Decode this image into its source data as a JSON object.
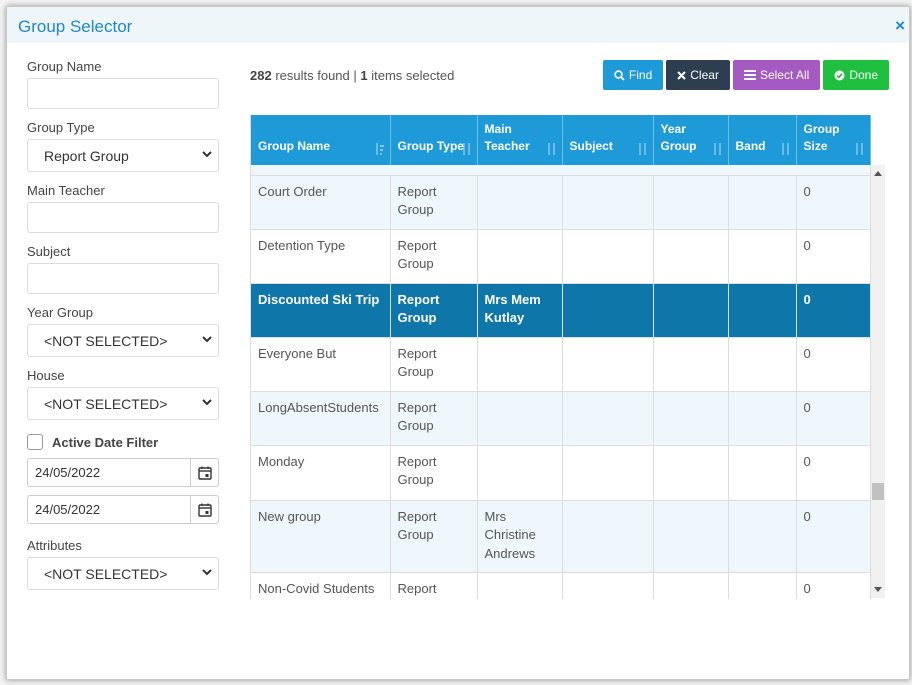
{
  "modal": {
    "title": "Group Selector",
    "close_label": "×"
  },
  "filters": {
    "group_name_label": "Group Name",
    "group_type_label": "Group Type",
    "group_type_value": "Report Group",
    "main_teacher_label": "Main Teacher",
    "subject_label": "Subject",
    "year_group_label": "Year Group",
    "year_group_value": "<NOT SELECTED>",
    "house_label": "House",
    "house_value": "<NOT SELECTED>",
    "active_date_filter_label": "Active Date Filter",
    "date_from": "24/05/2022",
    "date_to": "24/05/2022",
    "attributes_label": "Attributes",
    "attributes_value": "<NOT SELECTED>"
  },
  "results": {
    "count": "282",
    "found_text": "results found |",
    "selected": "1",
    "selected_text": "items selected"
  },
  "toolbar": {
    "find": "Find",
    "clear": "Clear",
    "select_all": "Select All",
    "done": "Done"
  },
  "table": {
    "headers": [
      "Group Name",
      "Group Type",
      "Main Teacher",
      "Subject",
      "Year Group",
      "Band",
      "Group Size"
    ],
    "rows": [
      {
        "name": "Court Order",
        "type": "Report Group",
        "teacher": "",
        "subject": "",
        "year": "",
        "band": "",
        "size": "0"
      },
      {
        "name": "Detention Type",
        "type": "Report Group",
        "teacher": "",
        "subject": "",
        "year": "",
        "band": "",
        "size": "0"
      },
      {
        "name": "Discounted Ski Trip",
        "type": "Report Group",
        "teacher": "Mrs Mem Kutlay",
        "subject": "",
        "year": "",
        "band": "",
        "size": "0"
      },
      {
        "name": "Everyone But",
        "type": "Report Group",
        "teacher": "",
        "subject": "",
        "year": "",
        "band": "",
        "size": "0"
      },
      {
        "name": "LongAbsentStudents",
        "type": "Report Group",
        "teacher": "",
        "subject": "",
        "year": "",
        "band": "",
        "size": "0"
      },
      {
        "name": "Monday",
        "type": "Report Group",
        "teacher": "",
        "subject": "",
        "year": "",
        "band": "",
        "size": "0"
      },
      {
        "name": "New group",
        "type": "Report Group",
        "teacher": "Mrs Christine Andrews",
        "subject": "",
        "year": "",
        "band": "",
        "size": "0"
      },
      {
        "name": "Non-Covid Students",
        "type": "Report Group",
        "teacher": "",
        "subject": "",
        "year": "",
        "band": "",
        "size": "0"
      }
    ],
    "selected_row": 2
  },
  "colors": {
    "accent": "#1e9ad8",
    "selected_row": "#0f76aa",
    "clear": "#2c3e50",
    "select_all": "#a55ac2",
    "done": "#1fbf3f"
  },
  "icons": {
    "find": "search-icon",
    "clear": "x-icon",
    "select_all": "list-icon",
    "done": "check-circle-icon",
    "date": "calendar-icon",
    "sort": "sort-icon"
  }
}
